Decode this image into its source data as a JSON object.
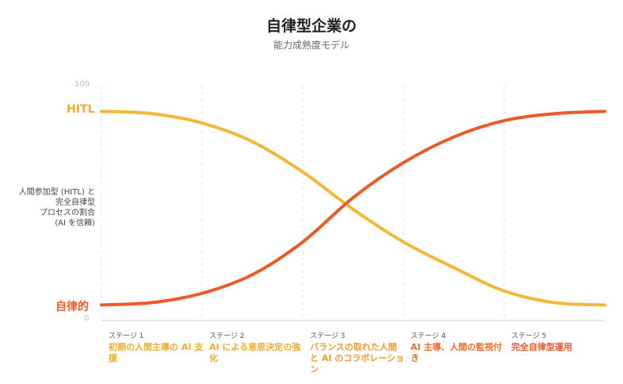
{
  "title": "自律型企業の",
  "subtitle": "能力成熟度モデル",
  "ylabel": "人間参加型 (HITL) と\n完全自律型\nプロセスの割合\n(AI を信頼)",
  "chart_data": {
    "type": "line",
    "ylim": [
      0,
      100
    ],
    "xlim": [
      0,
      5
    ],
    "y_ticks": [
      "100",
      "0"
    ],
    "y_end_labels": {
      "top": "HITL",
      "bottom": "自律的"
    },
    "grid": "vertical-dashed",
    "series": [
      {
        "name": "HITL",
        "color": "#f3b83a",
        "x": [
          0,
          0.5,
          1,
          1.5,
          2,
          2.5,
          3,
          3.5,
          4,
          4.5,
          5
        ],
        "y": [
          89,
          88,
          84,
          76,
          63,
          47,
          33,
          22,
          12,
          7,
          6
        ]
      },
      {
        "name": "自律的",
        "color": "#ec5b27",
        "x": [
          0,
          0.5,
          1,
          1.5,
          2,
          2.5,
          3,
          3.5,
          4,
          4.5,
          5
        ],
        "y": [
          6,
          7,
          11,
          19,
          33,
          52,
          67,
          78,
          85,
          88,
          89
        ]
      }
    ],
    "stages": [
      {
        "num": "ステージ 1",
        "name": "初期の人間主導の AI 支援",
        "color": "#f3ad2a"
      },
      {
        "num": "ステージ 2",
        "name": "AI による意思決定の強化",
        "color": "#f3ad2a"
      },
      {
        "num": "ステージ 3",
        "name": "バランスの取れた人間と AI のコラボレーション",
        "color": "#f49a2e"
      },
      {
        "num": "ステージ 4",
        "name": "AI 主導、人間の監視付き",
        "color": "#ee6d2b"
      },
      {
        "num": "ステージ 5",
        "name": "完全自律型運用",
        "color": "#ec5b27"
      }
    ]
  }
}
